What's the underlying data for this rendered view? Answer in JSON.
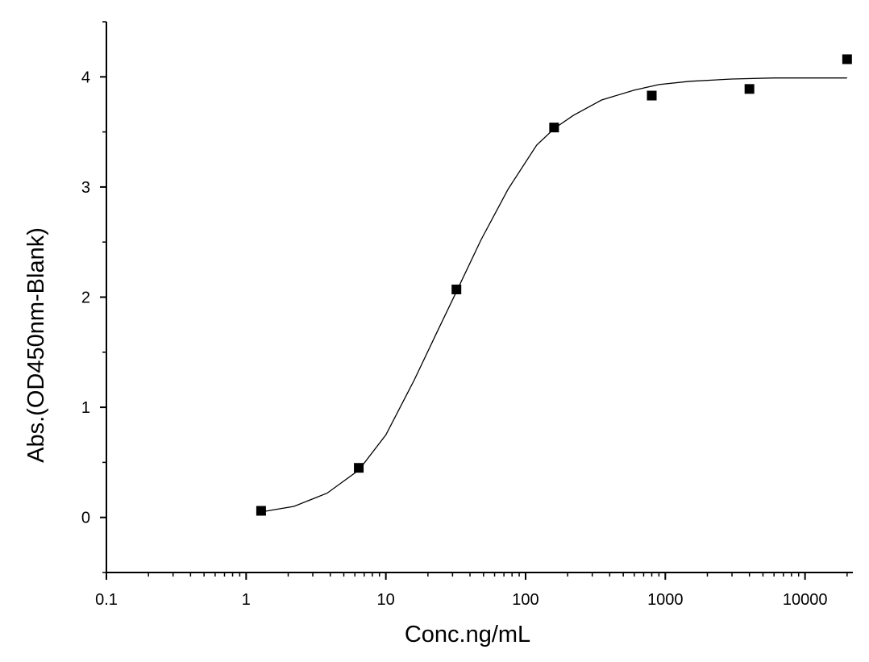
{
  "chart_data": {
    "type": "scatter",
    "title": "",
    "xlabel": "Conc.ng/mL",
    "ylabel": "Abs.(OD450nm-Blank)",
    "x_scale": "log",
    "xlim": [
      0.1,
      22000
    ],
    "ylim": [
      -0.5,
      4.5
    ],
    "x_ticks": [
      0.1,
      1,
      10,
      100,
      1000,
      10000
    ],
    "x_tick_labels": [
      "0.1",
      "1",
      "10",
      "100",
      "1000",
      "10000"
    ],
    "y_ticks": [
      0,
      1,
      2,
      3,
      4
    ],
    "y_tick_labels": [
      "0",
      "1",
      "2",
      "3",
      "4"
    ],
    "grid": false,
    "series": [
      {
        "type": "scatter",
        "marker": "square",
        "color": "#000000",
        "x": [
          1.28,
          6.4,
          32,
          160,
          800,
          4000,
          20000
        ],
        "y": [
          0.06,
          0.45,
          2.07,
          3.54,
          3.83,
          3.89,
          4.16
        ]
      },
      {
        "type": "line",
        "color": "#000000",
        "x": [
          1.28,
          2.2,
          3.8,
          6.4,
          10,
          16,
          24,
          32,
          48,
          75,
          120,
          160,
          220,
          350,
          600,
          900,
          1500,
          3000,
          6000,
          12000,
          20000
        ],
        "y": [
          0.05,
          0.1,
          0.22,
          0.43,
          0.75,
          1.25,
          1.72,
          2.05,
          2.52,
          2.98,
          3.38,
          3.53,
          3.65,
          3.79,
          3.88,
          3.93,
          3.96,
          3.98,
          3.99,
          3.99,
          3.99
        ]
      }
    ]
  }
}
